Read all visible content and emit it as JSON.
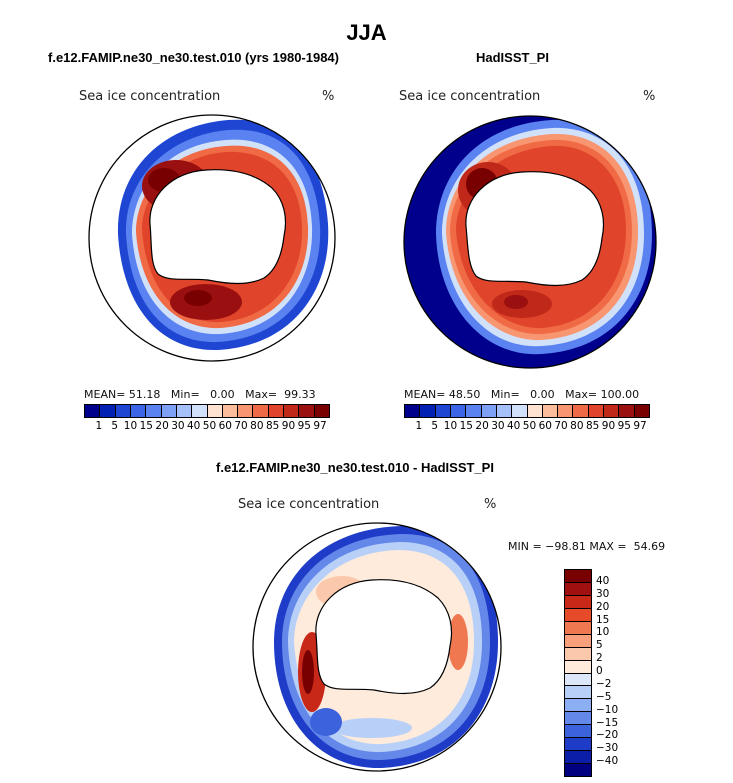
{
  "figure": {
    "title": "JJA",
    "field_label": "Sea ice concentration",
    "unit": "%"
  },
  "panels": [
    {
      "title": "f.e12.FAMIP.ne30_ne30.test.010 (yrs 1980-1984)",
      "stats": {
        "mean_label": "MEAN=",
        "mean": "51.18",
        "min_label": "Min=",
        "min": "0.00",
        "max_label": "Max=",
        "max": "99.33"
      }
    },
    {
      "title": "HadISST_PI",
      "stats": {
        "mean_label": "MEAN=",
        "mean": "48.50",
        "min_label": "Min=",
        "min": "0.00",
        "max_label": "Max=",
        "max": "100.00"
      }
    },
    {
      "title": "f.e12.FAMIP.ne30_ne30.test.010 - HadISST_PI",
      "stats_text": "MIN = −98.81 MAX =  54.69"
    }
  ],
  "colorbar_abs": {
    "ticks": [
      "1",
      "5",
      "10",
      "15",
      "20",
      "30",
      "40",
      "50",
      "60",
      "70",
      "80",
      "85",
      "90",
      "95",
      "97"
    ],
    "colors": [
      "#00008c",
      "#0020b4",
      "#1e46d2",
      "#3c64e6",
      "#5a82f0",
      "#7ea0f5",
      "#a5c0fa",
      "#d2e1fa",
      "#fde3d0",
      "#fbbd9c",
      "#f79670",
      "#f06a46",
      "#e0442a",
      "#c0281a",
      "#9a1010",
      "#780000"
    ]
  },
  "colorbar_diff": {
    "ticks": [
      "40",
      "30",
      "20",
      "15",
      "10",
      "5",
      "2",
      "0",
      "−2",
      "−5",
      "−10",
      "−15",
      "−20",
      "−30",
      "−40"
    ],
    "colors": [
      "#780000",
      "#a01010",
      "#c82818",
      "#e64a28",
      "#f07850",
      "#f8a07c",
      "#fcc8ac",
      "#feebdc",
      "#dce8fa",
      "#b8d0f8",
      "#8caef2",
      "#6488ea",
      "#3c62dc",
      "#1e3cc8",
      "#0a1ea8",
      "#000080"
    ]
  }
}
